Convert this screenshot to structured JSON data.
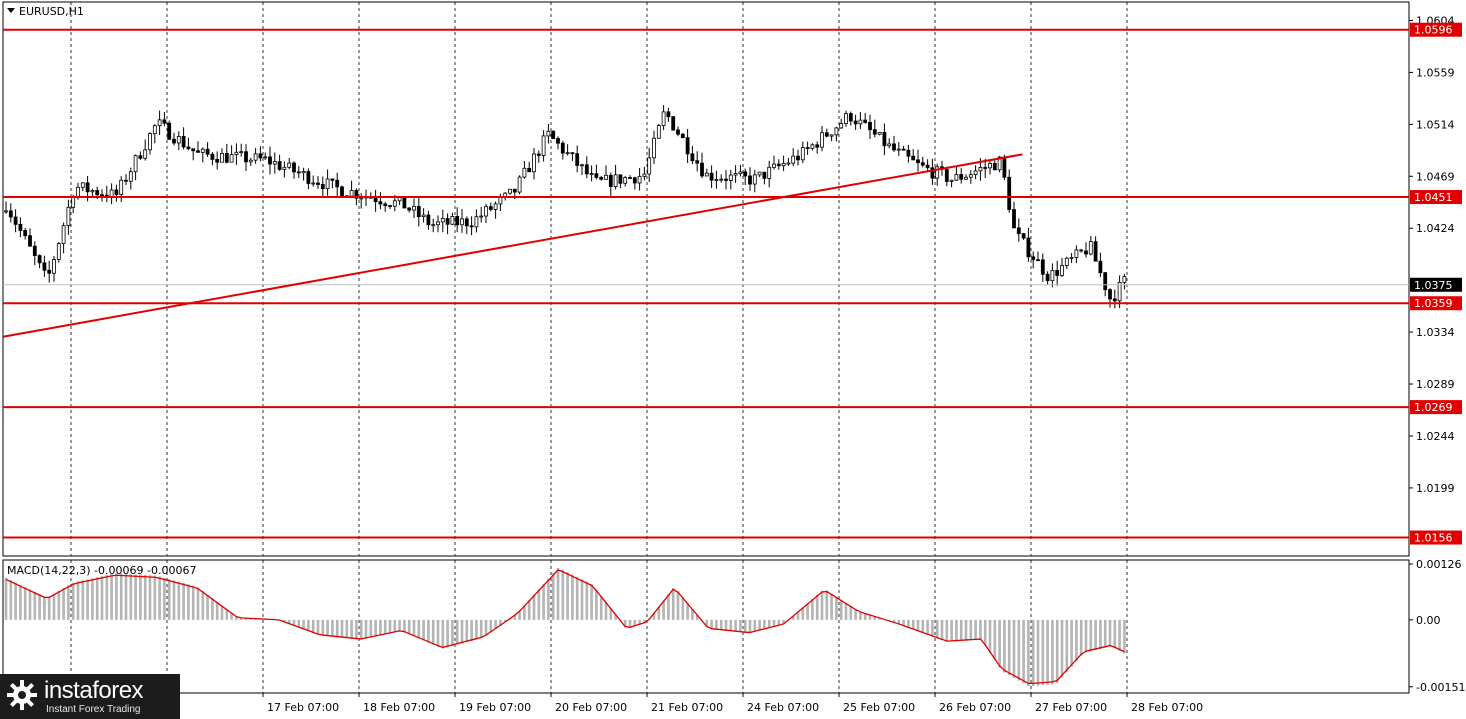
{
  "chart_data": [
    {
      "type": "candlestick",
      "title": "EURUSD,H1",
      "timeframe": "H1",
      "ylim": [
        1.014,
        1.062
      ],
      "yticks": [
        "1.0604",
        "1.0559",
        "1.0514",
        "1.0469",
        "1.0424",
        "1.0334",
        "1.0289",
        "1.0244",
        "1.0199"
      ],
      "xticks": [
        "17 Feb 07:00",
        "18 Feb 07:00",
        "19 Feb 07:00",
        "20 Feb 07:00",
        "21 Feb 07:00",
        "24 Feb 07:00",
        "25 Feb 07:00",
        "26 Feb 07:00",
        "27 Feb 07:00",
        "28 Feb 07:00"
      ],
      "current_price": "1.0375",
      "levels": [
        {
          "price": 1.0596,
          "label": "1.0596",
          "color": "#e00000"
        },
        {
          "price": 1.0451,
          "label": "1.0451",
          "color": "#e00000"
        },
        {
          "price": 1.0359,
          "label": "1.0359",
          "color": "#e00000"
        },
        {
          "price": 1.0269,
          "label": "1.0269",
          "color": "#e00000"
        },
        {
          "price": 1.0156,
          "label": "1.0156",
          "color": "#e00000"
        }
      ],
      "trendline": {
        "from": [
          0,
          1.033
        ],
        "to": [
          0.725,
          1.0488
        ],
        "color": "#e00000"
      },
      "path": [
        [
          0,
          1.0445
        ],
        [
          0.03,
          1.0378
        ],
        [
          0.05,
          1.046
        ],
        [
          0.08,
          1.0452
        ],
        [
          0.11,
          1.0515
        ],
        [
          0.14,
          1.0488
        ],
        [
          0.19,
          1.0483
        ],
        [
          0.24,
          1.0459
        ],
        [
          0.29,
          1.0444
        ],
        [
          0.31,
          1.0427
        ],
        [
          0.34,
          1.043
        ],
        [
          0.37,
          1.0455
        ],
        [
          0.395,
          1.0505
        ],
        [
          0.43,
          1.0463
        ],
        [
          0.465,
          1.047
        ],
        [
          0.48,
          1.0525
        ],
        [
          0.51,
          1.047
        ],
        [
          0.545,
          1.0466
        ],
        [
          0.58,
          1.0488
        ],
        [
          0.615,
          1.0522
        ],
        [
          0.645,
          1.0493
        ],
        [
          0.665,
          1.0478
        ],
        [
          0.69,
          1.0466
        ],
        [
          0.725,
          1.0482
        ],
        [
          0.735,
          1.042
        ],
        [
          0.76,
          1.0382
        ],
        [
          0.79,
          1.0408
        ],
        [
          0.805,
          1.0362
        ],
        [
          0.815,
          1.0378
        ]
      ]
    },
    {
      "type": "histogram",
      "title": "MACD(14,22,3) -0.00069 -0.00067",
      "ylim": [
        -0.00165,
        0.00135
      ],
      "yticks": [
        "0.00126",
        "0.00",
        "-0.00151"
      ],
      "signal_color": "#e00000",
      "histogram_color": "#b4b4b4",
      "path": [
        [
          0,
          0.00095
        ],
        [
          0.03,
          0.0005
        ],
        [
          0.05,
          0.00085
        ],
        [
          0.08,
          0.00105
        ],
        [
          0.11,
          0.001
        ],
        [
          0.14,
          0.00075
        ],
        [
          0.17,
          5e-05
        ],
        [
          0.2,
          0.0
        ],
        [
          0.23,
          -0.00035
        ],
        [
          0.26,
          -0.00045
        ],
        [
          0.29,
          -0.00025
        ],
        [
          0.32,
          -0.00065
        ],
        [
          0.35,
          -0.0004
        ],
        [
          0.375,
          0.00015
        ],
        [
          0.405,
          0.00118
        ],
        [
          0.43,
          0.0008
        ],
        [
          0.455,
          -0.0002
        ],
        [
          0.47,
          -5e-05
        ],
        [
          0.49,
          0.00075
        ],
        [
          0.515,
          -0.0002
        ],
        [
          0.545,
          -0.0003
        ],
        [
          0.57,
          -0.0001
        ],
        [
          0.6,
          0.0007
        ],
        [
          0.625,
          0.0002
        ],
        [
          0.655,
          -0.0001
        ],
        [
          0.69,
          -0.0005
        ],
        [
          0.715,
          -0.00045
        ],
        [
          0.73,
          -0.00115
        ],
        [
          0.75,
          -0.0015
        ],
        [
          0.77,
          -0.00145
        ],
        [
          0.79,
          -0.00075
        ],
        [
          0.81,
          -0.0006
        ],
        [
          0.82,
          -0.00075
        ]
      ]
    }
  ],
  "logo": {
    "name": "instaforex",
    "tagline": "Instant Forex Trading"
  }
}
